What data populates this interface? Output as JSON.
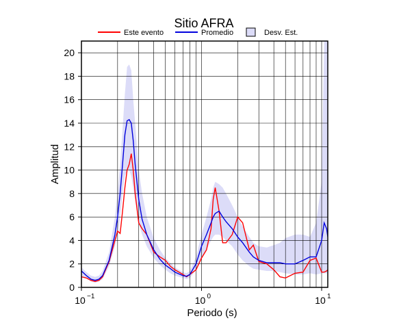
{
  "chart_data": {
    "type": "line",
    "title": "Sitio AFRA",
    "xlabel": "Periodo (s)",
    "ylabel": "Amplitud",
    "log_x": true,
    "grid": true,
    "xlim": [
      0.1,
      11.25
    ],
    "ylim": [
      0,
      21
    ],
    "xticks": [
      {
        "value": 0.1,
        "label": "10",
        "sup": "−1"
      },
      {
        "value": 1,
        "label": "10",
        "sup": "0"
      },
      {
        "value": 10,
        "label": "10",
        "sup": "1"
      }
    ],
    "xgrid": [
      0.2,
      0.3,
      0.4,
      0.5,
      0.6,
      0.7,
      0.8,
      0.9,
      2,
      3,
      4,
      5,
      6,
      7,
      8,
      9
    ],
    "yticks": [
      0,
      2,
      4,
      6,
      8,
      10,
      12,
      14,
      16,
      18,
      20
    ],
    "x": [
      0.1,
      0.11,
      0.12,
      0.13,
      0.14,
      0.15,
      0.17,
      0.19,
      0.2,
      0.21,
      0.22,
      0.23,
      0.24,
      0.25,
      0.26,
      0.27,
      0.28,
      0.3,
      0.32,
      0.35,
      0.4,
      0.45,
      0.5,
      0.55,
      0.6,
      0.7,
      0.75,
      0.8,
      0.9,
      1.0,
      1.1,
      1.2,
      1.25,
      1.3,
      1.4,
      1.5,
      1.6,
      1.8,
      2.0,
      2.2,
      2.5,
      2.7,
      3.0,
      3.5,
      4,
      4.5,
      5,
      6,
      7,
      8,
      9,
      10,
      10.5,
      11,
      11.25
    ],
    "band": {
      "name": "Desv. Est.",
      "color": "#dcdcf8",
      "lower": [
        1.0,
        0.8,
        0.5,
        0.4,
        0.5,
        0.7,
        1.8,
        3.5,
        4.5,
        6,
        8,
        9.5,
        10,
        10,
        9.5,
        8.5,
        7.5,
        5.5,
        4.5,
        3.5,
        2.5,
        1.9,
        1.5,
        1.2,
        1.0,
        0.8,
        0.7,
        0.8,
        1.5,
        2.5,
        3.2,
        4,
        4.3,
        4.5,
        4.5,
        4.3,
        4,
        3.5,
        2.8,
        2.3,
        1.8,
        1.6,
        1.5,
        1.4,
        1.4,
        1.3,
        1.2,
        1.1,
        1.1,
        1.2,
        1.1,
        1.2,
        1.2,
        1.2,
        1.2
      ],
      "upper": [
        1.7,
        1.3,
        1.0,
        0.9,
        1.0,
        1.4,
        3.0,
        6,
        8,
        10.5,
        13.5,
        16.5,
        18.8,
        19,
        18.5,
        16,
        14,
        10,
        8,
        6,
        4.2,
        3.2,
        2.5,
        2.1,
        1.7,
        1.3,
        1.2,
        1.4,
        2.6,
        4.5,
        6,
        7.5,
        8.5,
        9,
        8.8,
        8.5,
        8,
        7,
        6,
        5.2,
        4.3,
        3.8,
        3.5,
        3.4,
        3.6,
        3.8,
        4.2,
        4.5,
        4.5,
        4.3,
        5.5,
        9,
        21,
        21,
        21
      ]
    },
    "series": [
      {
        "name": "Este evento",
        "color": "#ff0000",
        "values": [
          0.9,
          0.8,
          0.6,
          0.5,
          0.6,
          0.9,
          2.2,
          4.0,
          4.8,
          4.6,
          6.5,
          8.5,
          10.0,
          10.5,
          11.4,
          10.0,
          8.0,
          5.5,
          5.0,
          4.5,
          3.0,
          2.6,
          2.3,
          1.8,
          1.5,
          1.1,
          0.9,
          1.1,
          1.5,
          2.5,
          3.2,
          5.0,
          7.5,
          8.5,
          6.5,
          3.8,
          3.8,
          4.5,
          6.0,
          5.5,
          3.2,
          3.6,
          2.2,
          2.0,
          1.5,
          0.9,
          0.8,
          1.2,
          1.3,
          2.3,
          2.5,
          1.3,
          1.3,
          1.4,
          1.5
        ]
      },
      {
        "name": "Promedio",
        "color": "#0000dd",
        "values": [
          1.4,
          1.0,
          0.7,
          0.6,
          0.7,
          1.0,
          2.3,
          4.5,
          6.0,
          8.0,
          10.5,
          13.0,
          14.2,
          14.3,
          14.0,
          12.5,
          10.5,
          7.5,
          5.8,
          4.5,
          3.2,
          2.4,
          1.9,
          1.6,
          1.3,
          1.0,
          0.95,
          1.1,
          2.0,
          3.5,
          4.5,
          5.5,
          6.0,
          6.3,
          6.5,
          6.0,
          5.6,
          5.0,
          4.3,
          3.8,
          3.0,
          2.6,
          2.3,
          2.1,
          2.1,
          2.1,
          2.0,
          2.0,
          2.3,
          2.6,
          2.6,
          4.0,
          5.5,
          5.0,
          4.3
        ]
      }
    ]
  }
}
